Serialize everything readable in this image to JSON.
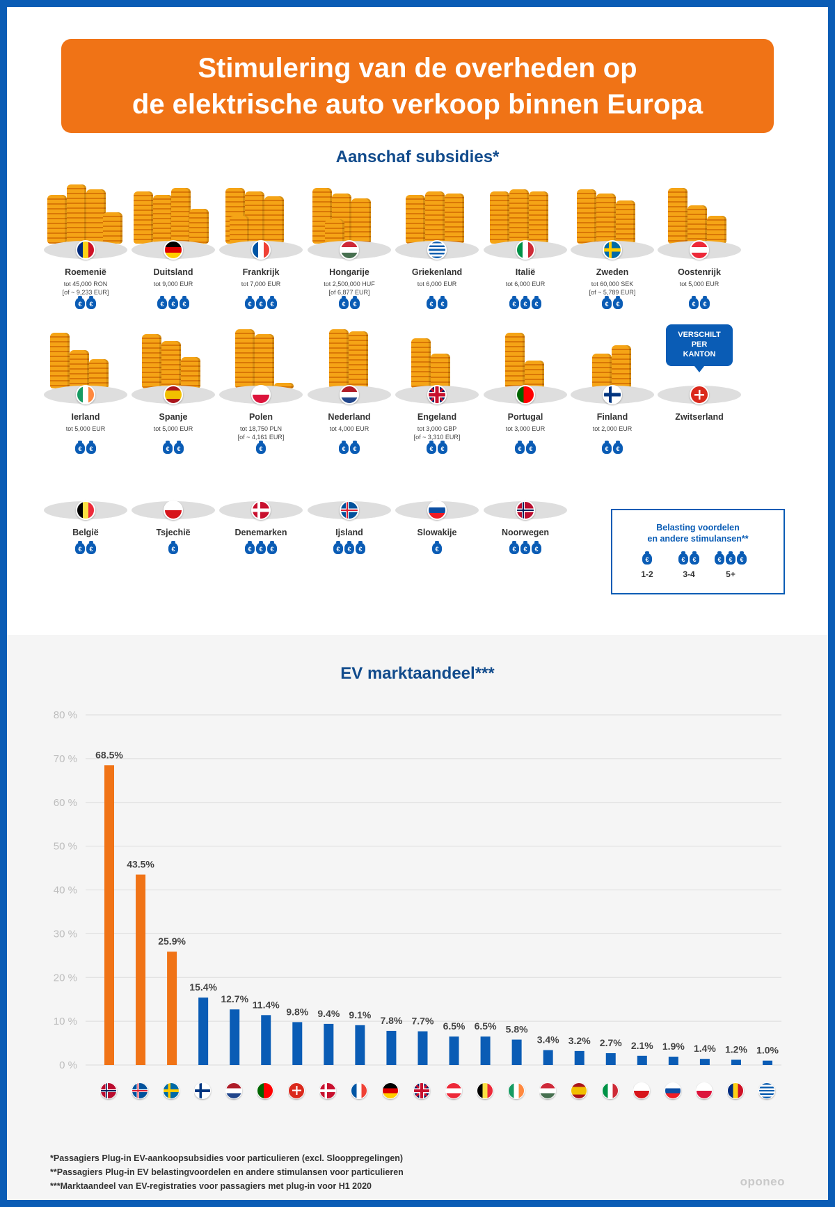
{
  "title_lines": [
    "Stimulering van de overheden op",
    "de elektrische auto verkoop binnen Europa"
  ],
  "subsidies_heading": "Aanschaf subsidies*",
  "chart_heading": "EV marktaandeel***",
  "colors": {
    "orange": "#f07316",
    "blue": "#0a5cb5",
    "dark_blue": "#114b8c"
  },
  "countries": [
    {
      "name": "Roemenië",
      "amount": "tot 45,000 RON\n[of ~ 9,233 EUR]",
      "bags": 2,
      "flag": "ro"
    },
    {
      "name": "Duitsland",
      "amount": "tot 9,000 EUR",
      "bags": 3,
      "flag": "de"
    },
    {
      "name": "Frankrijk",
      "amount": "tot 7,000 EUR",
      "bags": 3,
      "flag": "fr"
    },
    {
      "name": "Hongarije",
      "amount": "tot 2,500,000 HUF\n[of 6,877 EUR]",
      "bags": 2,
      "flag": "hu"
    },
    {
      "name": "Griekenland",
      "amount": "tot 6,000 EUR",
      "bags": 2,
      "flag": "gr"
    },
    {
      "name": "Italië",
      "amount": "tot 6,000 EUR",
      "bags": 3,
      "flag": "it"
    },
    {
      "name": "Zweden",
      "amount": "tot 60,000 SEK\n[of ~ 5,789 EUR]",
      "bags": 2,
      "flag": "se"
    },
    {
      "name": "Oostenrijk",
      "amount": "tot 5,000 EUR",
      "bags": 2,
      "flag": "at"
    },
    {
      "name": "Ierland",
      "amount": "tot 5,000 EUR",
      "bags": 2,
      "flag": "ie"
    },
    {
      "name": "Spanje",
      "amount": "tot 5,000 EUR",
      "bags": 2,
      "flag": "es"
    },
    {
      "name": "Polen",
      "amount": "tot 18,750 PLN\n[of ~ 4,161 EUR]",
      "bags": 1,
      "flag": "pl"
    },
    {
      "name": "Nederland",
      "amount": "tot 4,000 EUR",
      "bags": 2,
      "flag": "nl"
    },
    {
      "name": "Engeland",
      "amount": "tot 3,000 GBP\n[of ~ 3,310 EUR]",
      "bags": 2,
      "flag": "gb"
    },
    {
      "name": "Portugal",
      "amount": "tot 3,000 EUR",
      "bags": 2,
      "flag": "pt"
    },
    {
      "name": "Finland",
      "amount": "tot 2,000 EUR",
      "bags": 2,
      "flag": "fi"
    },
    {
      "name": "Zwitserland",
      "amount": "",
      "bags": 0,
      "flag": "ch",
      "callout": "VERSCHILT\nPER\nKANTON"
    },
    {
      "name": "België",
      "amount": "",
      "bags": 2,
      "flag": "be"
    },
    {
      "name": "Tsjechië",
      "amount": "",
      "bags": 1,
      "flag": "cz"
    },
    {
      "name": "Denemarken",
      "amount": "",
      "bags": 3,
      "flag": "dk"
    },
    {
      "name": "Ijsland",
      "amount": "",
      "bags": 3,
      "flag": "is"
    },
    {
      "name": "Slowakije",
      "amount": "",
      "bags": 1,
      "flag": "sk"
    },
    {
      "name": "Noorwegen",
      "amount": "",
      "bags": 3,
      "flag": "no"
    }
  ],
  "legend": {
    "title": "Belasting voordelen\nen andere stimulansen**",
    "items": [
      {
        "label": "1-2",
        "bags": 1
      },
      {
        "label": "3-4",
        "bags": 2
      },
      {
        "label": "5+",
        "bags": 3
      }
    ]
  },
  "chart_data": {
    "type": "bar",
    "title": "EV marktaandeel***",
    "categories": [
      "no",
      "is",
      "se",
      "fi",
      "nl",
      "pt",
      "ch",
      "dk",
      "fr",
      "de",
      "gb",
      "at",
      "be",
      "ie",
      "hu",
      "es",
      "it",
      "cz",
      "sk",
      "pl",
      "ro",
      "gr"
    ],
    "values": [
      68.5,
      43.5,
      25.9,
      15.4,
      12.7,
      11.4,
      9.8,
      9.4,
      9.1,
      7.8,
      7.7,
      6.5,
      6.5,
      5.8,
      3.4,
      3.2,
      2.7,
      2.1,
      1.9,
      1.4,
      1.2,
      1.0
    ],
    "labels": [
      "68.5%",
      "43.5%",
      "25.9%",
      "15.4%",
      "12.7%",
      "11.4%",
      "9.8%",
      "9.4%",
      "9.1%",
      "7.8%",
      "7.7%",
      "6.5%",
      "6.5%",
      "5.8%",
      "3.4%",
      "3.2%",
      "2.7%",
      "2.1%",
      "1.9%",
      "1.4%",
      "1.2%",
      "1.0%"
    ],
    "bar_colors": [
      "#f07316",
      "#f07316",
      "#f07316",
      "#0a5cb5",
      "#0a5cb5",
      "#0a5cb5",
      "#0a5cb5",
      "#0a5cb5",
      "#0a5cb5",
      "#0a5cb5",
      "#0a5cb5",
      "#0a5cb5",
      "#0a5cb5",
      "#0a5cb5",
      "#0a5cb5",
      "#0a5cb5",
      "#0a5cb5",
      "#0a5cb5",
      "#0a5cb5",
      "#0a5cb5",
      "#0a5cb5",
      "#0a5cb5"
    ],
    "y_ticks": [
      "0 %",
      "10 %",
      "20 %",
      "30 %",
      "40 %",
      "50 %",
      "60 %",
      "70 %",
      "80 %"
    ],
    "ylim": [
      0,
      80
    ],
    "grid": true
  },
  "footnotes": [
    "*Passagiers Plug-in EV-aankoopsubsidies voor particulieren (excl. Slooppregelingen)",
    "**Passagiers Plug-in EV belastingvoordelen en andere stimulansen voor particulieren",
    "***Marktaandeel van EV-registraties voor passagiers met plug-in voor H1 2020"
  ],
  "brand": "oponeo"
}
